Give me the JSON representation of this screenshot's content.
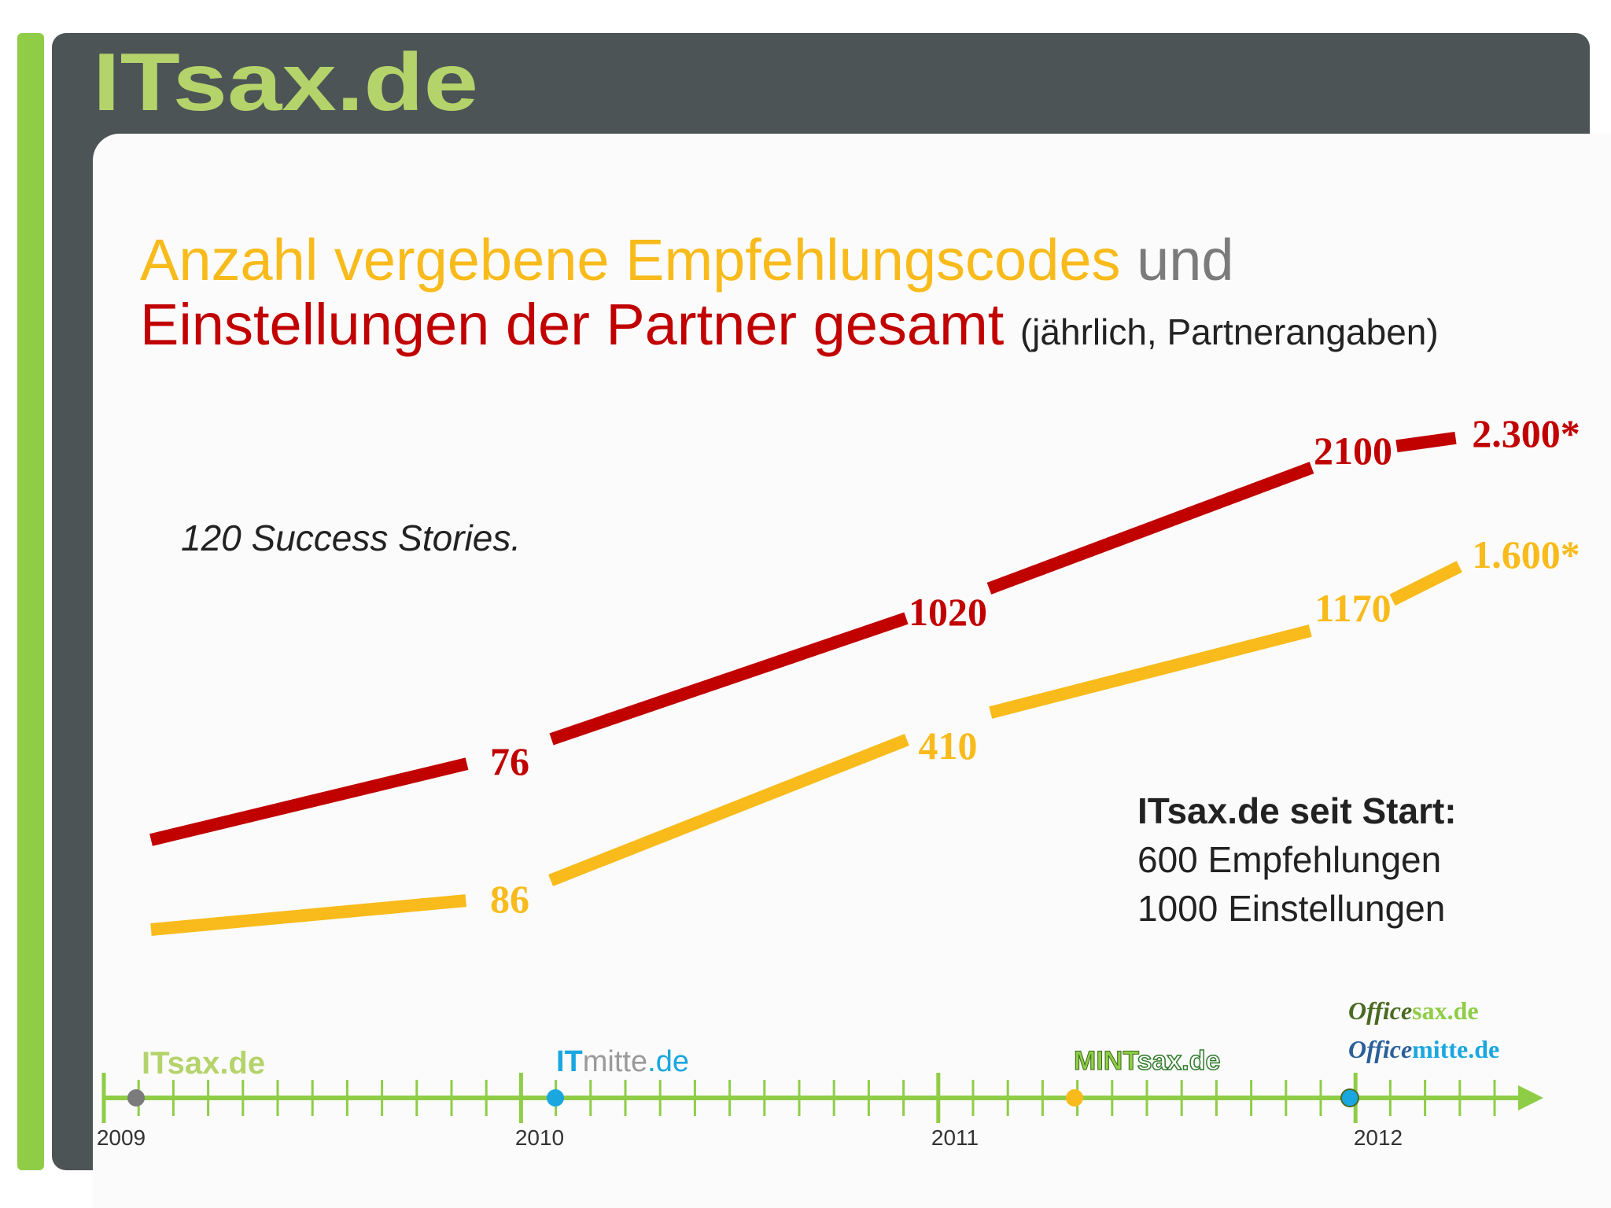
{
  "header": {
    "logo_text": "ITsax.de"
  },
  "title": {
    "line1_part1": "Anzahl vergebene Empfehlungscodes",
    "line1_part2": "und",
    "line2_part1": "Einstellungen der Partner gesamt",
    "line2_part2": "(jährlich, Partnerangaben)"
  },
  "success_note": "120 Success Stories.",
  "info_box": {
    "heading": "ITsax.de seit Start:",
    "line1": "600 Empfehlungen",
    "line2": "1000 Einstellungen"
  },
  "colors": {
    "empfehlungen": "#f8bb1b",
    "einstellungen": "#c10000",
    "timeline": "#8fcd47",
    "frame": "#4d5456"
  },
  "chart_data": {
    "type": "line",
    "x": [
      2009,
      2010,
      2011,
      2012,
      2012.3
    ],
    "series": [
      {
        "name": "Einstellungen der Partner gesamt",
        "color": "#c10000",
        "values": [
          null,
          76,
          1020,
          2100,
          2300
        ],
        "labels": [
          "",
          "76",
          "1020",
          "2100",
          "2.300*"
        ]
      },
      {
        "name": "Anzahl vergebene Empfehlungscodes",
        "color": "#f8bb1b",
        "values": [
          null,
          86,
          410,
          1170,
          1600
        ],
        "labels": [
          "",
          "86",
          "410",
          "1170",
          "1.600*"
        ]
      }
    ],
    "timeline": {
      "years": [
        "2009",
        "2010",
        "2011",
        "2012"
      ],
      "milestones": [
        {
          "brand": "ITsax.de",
          "color": "#7b7b7b"
        },
        {
          "brand": "ITmitte.de",
          "color": "#1aa7e0"
        },
        {
          "brand": "MINTsax.de",
          "color": "#f8bb1b"
        },
        {
          "brand": "officesax.de / officemitte.de",
          "color": "#1aa7e0"
        }
      ]
    },
    "brands": {
      "itsax": "ITsax.de",
      "itmitte_a": "IT",
      "itmitte_b": "mitte",
      "itmitte_c": ".de",
      "mintsax_a": "MINT",
      "mintsax_b": "sax.de",
      "officesax_a": "Office",
      "officesax_b": "sax.de",
      "officemitte_a": "Office",
      "officemitte_b": "mitte.de"
    }
  }
}
